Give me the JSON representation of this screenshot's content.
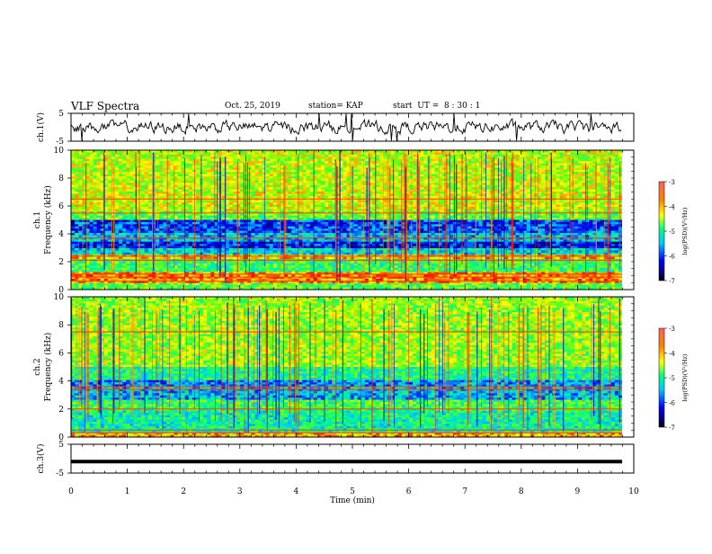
{
  "header": {
    "title": "VLF Spectra",
    "date": "Oct. 25, 2019",
    "station": "station= KAP",
    "start_ut": "start  UT =  8 : 30 : 1"
  },
  "chart_data": [
    {
      "type": "line",
      "panel": "ch1-waveform",
      "ylabel": "ch.1(V)",
      "ylim": [
        -5,
        5
      ],
      "yticks": [
        "5",
        "-5"
      ],
      "xlim": [
        0,
        10
      ],
      "series": [
        {
          "description": "noise waveform around 0 V, amplitude roughly ±2 V",
          "level": 0,
          "amplitude": 2,
          "color": "#000000"
        }
      ]
    },
    {
      "type": "heatmap",
      "panel": "ch1-spectrogram",
      "ylabel": "ch.1",
      "ylabel2": "Frequency  (kHz)",
      "ylim": [
        0,
        10
      ],
      "yticks": [
        "0",
        "2",
        "4",
        "6",
        "8",
        "10"
      ],
      "xlim": [
        0,
        9.8
      ],
      "colorbar": {
        "range": [
          -7,
          -3
        ],
        "ticks": [
          "-3",
          "-4",
          "-5",
          "-6",
          "-7"
        ],
        "label": "log(PSD)(V²/Hz)"
      },
      "bands": [
        {
          "from": 0,
          "to": 0.4,
          "level": 0.55
        },
        {
          "from": 0.4,
          "to": 1.2,
          "level": 0.85
        },
        {
          "from": 1.2,
          "to": 2.2,
          "level": 0.5
        },
        {
          "from": 2.2,
          "to": 2.5,
          "level": 0.8
        },
        {
          "from": 2.5,
          "to": 3.0,
          "level": 0.35
        },
        {
          "from": 3.0,
          "to": 3.4,
          "level": 0.12
        },
        {
          "from": 3.4,
          "to": 4.0,
          "level": 0.3
        },
        {
          "from": 4.0,
          "to": 5.0,
          "level": 0.18
        },
        {
          "from": 5.0,
          "to": 5.6,
          "level": 0.55
        },
        {
          "from": 5.6,
          "to": 7.0,
          "level": 0.68
        },
        {
          "from": 7.0,
          "to": 10.0,
          "level": 0.66
        }
      ],
      "lines_khz": [
        0.6,
        0.9,
        1.1,
        2.1,
        2.4,
        3.7,
        5.5,
        6.5
      ]
    },
    {
      "type": "heatmap",
      "panel": "ch2-spectrogram",
      "ylabel": "ch.2",
      "ylabel2": "Frequency  (kHz)",
      "ylim": [
        0,
        10
      ],
      "yticks": [
        "0",
        "2",
        "4",
        "6",
        "8",
        "10"
      ],
      "xlim": [
        0,
        9.8
      ],
      "colorbar": {
        "range": [
          -7,
          -3
        ],
        "ticks": [
          "-3",
          "-4",
          "-5",
          "-6",
          "-7"
        ],
        "label": "log(PSD)(V²/Hz)"
      },
      "bands": [
        {
          "from": 0,
          "to": 0.3,
          "level": 0.8
        },
        {
          "from": 0.3,
          "to": 1.8,
          "level": 0.42
        },
        {
          "from": 1.8,
          "to": 2.6,
          "level": 0.5
        },
        {
          "from": 2.6,
          "to": 3.6,
          "level": 0.3
        },
        {
          "from": 3.6,
          "to": 4.0,
          "level": 0.25
        },
        {
          "from": 4.0,
          "to": 5.0,
          "level": 0.45
        },
        {
          "from": 5.0,
          "to": 10.0,
          "level": 0.62
        }
      ],
      "lines_khz": [
        0.3,
        0.5,
        2.0,
        3.4,
        3.6,
        7.5
      ]
    },
    {
      "type": "line",
      "panel": "ch3-waveform",
      "ylabel": "ch.3(V)",
      "ylim": [
        -5,
        5
      ],
      "yticks": [
        "5",
        "-5"
      ],
      "xlim": [
        0,
        9.8
      ],
      "series": [
        {
          "description": "flat trace near -1 V",
          "level": -1,
          "amplitude": 0,
          "color": "#000000"
        }
      ]
    }
  ],
  "x_axis": {
    "label": "Time  (min)",
    "range": [
      0,
      10
    ],
    "ticks": [
      "0",
      "1",
      "2",
      "3",
      "4",
      "5",
      "6",
      "7",
      "8",
      "9",
      "10"
    ]
  }
}
